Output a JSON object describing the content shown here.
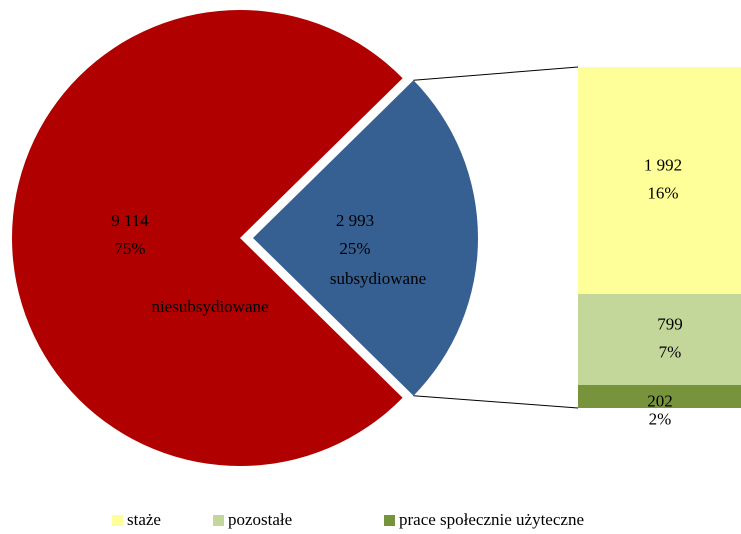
{
  "chart_data": {
    "type": "pie",
    "categories": [
      "niesubsydiowane",
      "subsydiowane"
    ],
    "values": [
      9114,
      2993
    ],
    "value_labels": [
      "9 114",
      "2 993"
    ],
    "percent_labels": [
      "75%",
      "25%"
    ],
    "colors": [
      "#b00000",
      "#376092"
    ],
    "bar": {
      "categories": [
        "staże",
        "pozostałe",
        "prace społecznie użyteczne"
      ],
      "values": [
        1992,
        799,
        202
      ],
      "value_labels": [
        "1 992",
        "799",
        "202"
      ],
      "percent_labels": [
        "16%",
        "7%",
        "2%"
      ],
      "colors": [
        "#ffff99",
        "#c4d79b",
        "#77933c"
      ]
    }
  }
}
